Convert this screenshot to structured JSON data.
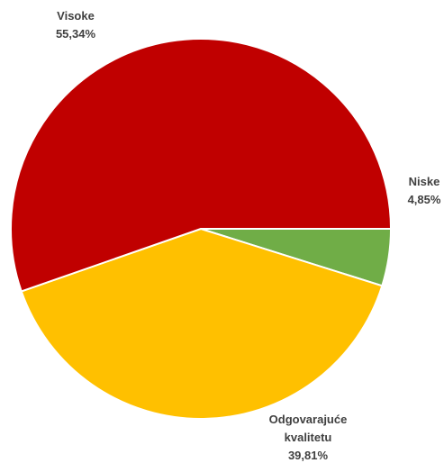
{
  "chart_data": {
    "type": "pie",
    "title": "",
    "slices": [
      {
        "name": "Niske",
        "label_lines": [
          "Niske"
        ],
        "value": 4.85,
        "value_text": "4,85%",
        "color": "#70AD47"
      },
      {
        "name": "Odgovarajuće kvalitetu",
        "label_lines": [
          "Odgovarajuće",
          "kvalitetu"
        ],
        "value": 39.81,
        "value_text": "39,81%",
        "color": "#FFC000"
      },
      {
        "name": "Visoke",
        "label_lines": [
          "Visoke"
        ],
        "value": 55.34,
        "value_text": "55,34%",
        "color": "#C00000"
      }
    ],
    "start_angle_deg": 0,
    "direction": "clockwise",
    "labels": "outside, category name and percent"
  }
}
